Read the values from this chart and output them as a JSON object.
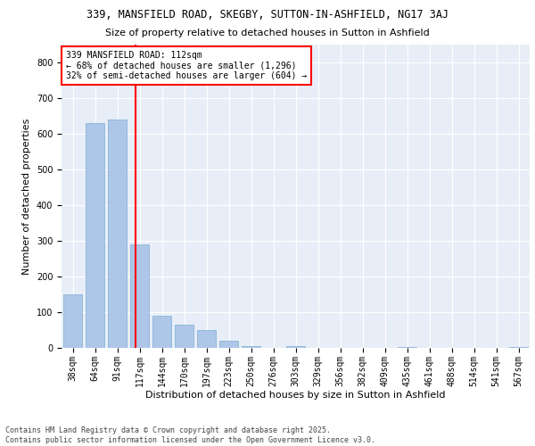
{
  "title1": "339, MANSFIELD ROAD, SKEGBY, SUTTON-IN-ASHFIELD, NG17 3AJ",
  "title2": "Size of property relative to detached houses in Sutton in Ashfield",
  "xlabel": "Distribution of detached houses by size in Sutton in Ashfield",
  "ylabel": "Number of detached properties",
  "categories": [
    "38sqm",
    "64sqm",
    "91sqm",
    "117sqm",
    "144sqm",
    "170sqm",
    "197sqm",
    "223sqm",
    "250sqm",
    "276sqm",
    "303sqm",
    "329sqm",
    "356sqm",
    "382sqm",
    "409sqm",
    "435sqm",
    "461sqm",
    "488sqm",
    "514sqm",
    "541sqm",
    "567sqm"
  ],
  "values": [
    150,
    630,
    640,
    290,
    90,
    65,
    50,
    20,
    5,
    0,
    5,
    0,
    0,
    0,
    0,
    3,
    0,
    0,
    0,
    0,
    3
  ],
  "bar_color": "#aec6e8",
  "bar_edge_color": "#7aafd4",
  "vline_color": "red",
  "annotation_text": "339 MANSFIELD ROAD: 112sqm\n← 68% of detached houses are smaller (1,296)\n32% of semi-detached houses are larger (604) →",
  "annotation_box_color": "white",
  "annotation_box_edge": "red",
  "ylim": [
    0,
    850
  ],
  "yticks": [
    0,
    100,
    200,
    300,
    400,
    500,
    600,
    700,
    800
  ],
  "background_color": "#e8eef7",
  "footer": "Contains HM Land Registry data © Crown copyright and database right 2025.\nContains public sector information licensed under the Open Government Licence v3.0.",
  "title1_fontsize": 8.5,
  "title2_fontsize": 8,
  "xlabel_fontsize": 8,
  "ylabel_fontsize": 8,
  "tick_fontsize": 7,
  "annotation_fontsize": 7,
  "footer_fontsize": 6
}
